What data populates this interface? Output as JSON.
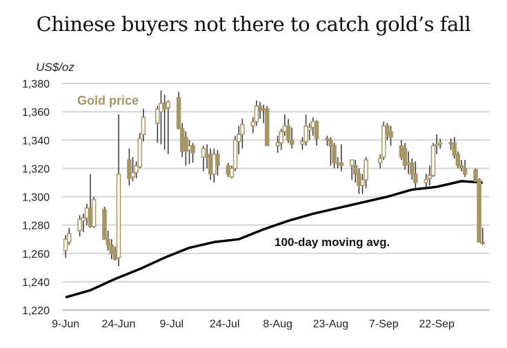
{
  "chart_data": {
    "type": "candlestick",
    "title": "Chinese buyers not there to catch gold’s fall",
    "ylabel": "US$/oz",
    "ylim": [
      1220,
      1380
    ],
    "yticks": [
      "1,220",
      "1,240",
      "1,260",
      "1,280",
      "1,300",
      "1,320",
      "1,340",
      "1,360",
      "1,380"
    ],
    "xticks": [
      "9-Jun",
      "24-Jun",
      "9-Jul",
      "24-Jul",
      "8-Aug",
      "23-Aug",
      "7-Sep",
      "22-Sep"
    ],
    "xtick_dates": [
      "2016-06-09",
      "2016-06-24",
      "2016-07-09",
      "2016-07-24",
      "2016-08-08",
      "2016-08-23",
      "2016-09-07",
      "2016-09-22"
    ],
    "xlim": [
      "2016-06-08",
      "2016-10-07"
    ],
    "grid": true,
    "colors": {
      "candle": "#a89566",
      "wick": "#333333",
      "ma": "#000000",
      "grid": "#d4d4d4"
    },
    "annotations": {
      "gold": "Gold price",
      "ma": "100-day moving avg."
    },
    "candles_columns": [
      "date",
      "open",
      "high",
      "low",
      "close"
    ],
    "candles": [
      [
        "2016-06-09",
        1262,
        1273,
        1257,
        1270
      ],
      [
        "2016-06-10",
        1268,
        1278,
        1266,
        1274
      ],
      [
        "2016-06-13",
        1276,
        1287,
        1272,
        1284
      ],
      [
        "2016-06-14",
        1283,
        1288,
        1275,
        1285
      ],
      [
        "2016-06-15",
        1285,
        1295,
        1280,
        1292
      ],
      [
        "2016-06-16",
        1292,
        1316,
        1278,
        1279
      ],
      [
        "2016-06-17",
        1279,
        1300,
        1278,
        1298
      ],
      [
        "2016-06-20",
        1291,
        1293,
        1270,
        1270
      ],
      [
        "2016-06-21",
        1270,
        1276,
        1262,
        1266
      ],
      [
        "2016-06-22",
        1266,
        1270,
        1256,
        1260
      ],
      [
        "2016-06-23",
        1262,
        1265,
        1255,
        1256
      ],
      [
        "2016-06-24",
        1257,
        1358,
        1251,
        1316
      ],
      [
        "2016-06-27",
        1326,
        1334,
        1308,
        1313
      ],
      [
        "2016-06-28",
        1314,
        1328,
        1311,
        1317
      ],
      [
        "2016-06-29",
        1317,
        1325,
        1313,
        1322
      ],
      [
        "2016-06-30",
        1321,
        1345,
        1320,
        1341
      ],
      [
        "2016-07-01",
        1344,
        1362,
        1339,
        1356
      ],
      [
        "2016-07-05",
        1352,
        1364,
        1338,
        1362
      ],
      [
        "2016-07-06",
        1360,
        1375,
        1337,
        1366
      ],
      [
        "2016-07-07",
        1366,
        1372,
        1333,
        1362
      ],
      [
        "2016-07-08",
        1363,
        1368,
        1330,
        1367
      ],
      [
        "2016-07-11",
        1370,
        1374,
        1348,
        1348
      ],
      [
        "2016-07-12",
        1348,
        1352,
        1328,
        1332
      ],
      [
        "2016-07-13",
        1342,
        1346,
        1322,
        1332
      ],
      [
        "2016-07-14",
        1333,
        1340,
        1323,
        1336
      ],
      [
        "2016-07-15",
        1336,
        1338,
        1324,
        1331
      ],
      [
        "2016-07-18",
        1328,
        1336,
        1318,
        1334
      ],
      [
        "2016-07-19",
        1330,
        1337,
        1320,
        1328
      ],
      [
        "2016-07-20",
        1330,
        1334,
        1312,
        1316
      ],
      [
        "2016-07-21",
        1316,
        1334,
        1310,
        1330
      ],
      [
        "2016-07-22",
        1330,
        1333,
        1315,
        1322
      ],
      [
        "2016-07-25",
        1322,
        1324,
        1314,
        1316
      ],
      [
        "2016-07-26",
        1314,
        1322,
        1313,
        1320
      ],
      [
        "2016-07-27",
        1320,
        1343,
        1318,
        1340
      ],
      [
        "2016-07-28",
        1339,
        1350,
        1330,
        1344
      ],
      [
        "2016-07-29",
        1344,
        1355,
        1334,
        1351
      ],
      [
        "2016-08-01",
        1350,
        1356,
        1345,
        1353
      ],
      [
        "2016-08-02",
        1353,
        1368,
        1350,
        1364
      ],
      [
        "2016-08-03",
        1364,
        1367,
        1355,
        1361
      ],
      [
        "2016-08-04",
        1362,
        1365,
        1352,
        1362
      ],
      [
        "2016-08-05",
        1362,
        1364,
        1336,
        1336
      ],
      [
        "2016-08-08",
        1336,
        1343,
        1331,
        1338
      ],
      [
        "2016-08-09",
        1338,
        1348,
        1333,
        1346
      ],
      [
        "2016-08-10",
        1346,
        1358,
        1343,
        1350
      ],
      [
        "2016-08-11",
        1350,
        1355,
        1338,
        1340
      ],
      [
        "2016-08-12",
        1340,
        1349,
        1334,
        1337
      ],
      [
        "2016-08-15",
        1337,
        1342,
        1333,
        1339
      ],
      [
        "2016-08-16",
        1339,
        1358,
        1336,
        1350
      ],
      [
        "2016-08-17",
        1347,
        1352,
        1340,
        1349
      ],
      [
        "2016-08-18",
        1349,
        1356,
        1343,
        1353
      ],
      [
        "2016-08-19",
        1353,
        1354,
        1336,
        1341
      ],
      [
        "2016-08-22",
        1341,
        1343,
        1336,
        1340
      ],
      [
        "2016-08-23",
        1340,
        1342,
        1322,
        1336
      ],
      [
        "2016-08-24",
        1336,
        1338,
        1320,
        1324
      ],
      [
        "2016-08-25",
        1324,
        1328,
        1320,
        1324
      ],
      [
        "2016-08-26",
        1324,
        1337,
        1318,
        1322
      ],
      [
        "2016-08-29",
        1322,
        1325,
        1312,
        1326
      ],
      [
        "2016-08-30",
        1322,
        1326,
        1310,
        1316
      ],
      [
        "2016-08-31",
        1316,
        1320,
        1302,
        1308
      ],
      [
        "2016-09-01",
        1308,
        1316,
        1302,
        1312
      ],
      [
        "2016-09-02",
        1312,
        1328,
        1306,
        1326
      ],
      [
        "2016-09-06",
        1324,
        1330,
        1320,
        1327
      ],
      [
        "2016-09-07",
        1328,
        1353,
        1326,
        1350
      ],
      [
        "2016-09-08",
        1350,
        1352,
        1340,
        1344
      ],
      [
        "2016-09-09",
        1346,
        1350,
        1336,
        1342
      ],
      [
        "2016-09-12",
        1336,
        1340,
        1326,
        1328
      ],
      [
        "2016-09-13",
        1334,
        1338,
        1319,
        1322
      ],
      [
        "2016-09-14",
        1323,
        1332,
        1316,
        1324
      ],
      [
        "2016-09-15",
        1324,
        1327,
        1312,
        1316
      ],
      [
        "2016-09-16",
        1316,
        1325,
        1306,
        1310
      ],
      [
        "2016-09-19",
        1310,
        1316,
        1306,
        1312
      ],
      [
        "2016-09-20",
        1313,
        1322,
        1308,
        1315
      ],
      [
        "2016-09-21",
        1315,
        1338,
        1314,
        1336
      ],
      [
        "2016-09-22",
        1336,
        1344,
        1330,
        1337
      ],
      [
        "2016-09-23",
        1337,
        1341,
        1334,
        1338
      ],
      [
        "2016-09-26",
        1338,
        1341,
        1333,
        1338
      ],
      [
        "2016-09-27",
        1338,
        1342,
        1327,
        1329
      ],
      [
        "2016-09-28",
        1330,
        1332,
        1320,
        1322
      ],
      [
        "2016-09-29",
        1322,
        1326,
        1318,
        1320
      ],
      [
        "2016-09-30",
        1320,
        1326,
        1314,
        1316
      ],
      [
        "2016-10-03",
        1319,
        1320,
        1310,
        1311
      ],
      [
        "2016-10-04",
        1312,
        1313,
        1268,
        1268
      ],
      [
        "2016-10-05",
        1268,
        1278,
        1266,
        1267
      ]
    ],
    "moving_average": [
      [
        "2016-06-09",
        1229
      ],
      [
        "2016-06-16",
        1234
      ],
      [
        "2016-06-23",
        1242
      ],
      [
        "2016-06-30",
        1249
      ],
      [
        "2016-07-07",
        1257
      ],
      [
        "2016-07-14",
        1264
      ],
      [
        "2016-07-21",
        1268
      ],
      [
        "2016-07-28",
        1270
      ],
      [
        "2016-08-04",
        1277
      ],
      [
        "2016-08-11",
        1283
      ],
      [
        "2016-08-18",
        1288
      ],
      [
        "2016-08-25",
        1292
      ],
      [
        "2016-09-01",
        1296
      ],
      [
        "2016-09-08",
        1300
      ],
      [
        "2016-09-15",
        1305
      ],
      [
        "2016-09-22",
        1307
      ],
      [
        "2016-09-29",
        1311
      ],
      [
        "2016-10-05",
        1310
      ]
    ]
  }
}
